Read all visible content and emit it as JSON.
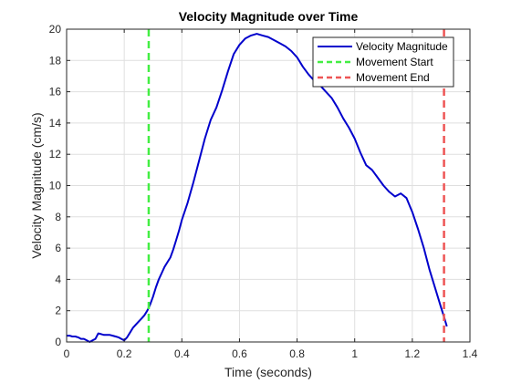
{
  "chart_data": {
    "type": "line",
    "title": "Velocity Magnitude over Time",
    "xlabel": "Time (seconds)",
    "ylabel": "Velocity Magnitude (cm/s)",
    "xlim": [
      0,
      1.4
    ],
    "ylim": [
      0,
      20
    ],
    "xticks": [
      0,
      0.2,
      0.4,
      0.6,
      0.8,
      1,
      1.2,
      1.4
    ],
    "xtick_labels": [
      "0",
      "0.2",
      "0.4",
      "0.6",
      "0.8",
      "1",
      "1.2",
      "1.4"
    ],
    "yticks": [
      0,
      2,
      4,
      6,
      8,
      10,
      12,
      14,
      16,
      18,
      20
    ],
    "ytick_labels": [
      "0",
      "2",
      "4",
      "6",
      "8",
      "10",
      "12",
      "14",
      "16",
      "18",
      "20"
    ],
    "grid": true,
    "legend_position": "top-right",
    "series": [
      {
        "name": "Velocity Magnitude",
        "color": "#0000CC",
        "x": [
          0,
          0.01,
          0.02,
          0.03,
          0.04,
          0.05,
          0.06,
          0.07,
          0.08,
          0.09,
          0.1,
          0.11,
          0.12,
          0.13,
          0.14,
          0.15,
          0.16,
          0.17,
          0.18,
          0.19,
          0.2,
          0.21,
          0.22,
          0.23,
          0.24,
          0.25,
          0.26,
          0.27,
          0.28,
          0.29,
          0.3,
          0.31,
          0.32,
          0.33,
          0.34,
          0.35,
          0.36,
          0.37,
          0.38,
          0.39,
          0.4,
          0.42,
          0.44,
          0.46,
          0.48,
          0.5,
          0.52,
          0.54,
          0.56,
          0.58,
          0.6,
          0.62,
          0.64,
          0.66,
          0.68,
          0.7,
          0.72,
          0.74,
          0.76,
          0.78,
          0.8,
          0.82,
          0.84,
          0.86,
          0.88,
          0.9,
          0.92,
          0.94,
          0.96,
          0.98,
          1.0,
          1.02,
          1.04,
          1.06,
          1.08,
          1.1,
          1.12,
          1.14,
          1.16,
          1.18,
          1.2,
          1.22,
          1.24,
          1.26,
          1.28,
          1.3,
          1.31,
          1.32
        ],
        "values": [
          0.4,
          0.4,
          0.35,
          0.35,
          0.3,
          0.2,
          0.2,
          0.1,
          0.0,
          0.1,
          0.2,
          0.55,
          0.5,
          0.45,
          0.45,
          0.45,
          0.4,
          0.35,
          0.3,
          0.2,
          0.1,
          0.3,
          0.6,
          0.9,
          1.1,
          1.3,
          1.5,
          1.7,
          2.0,
          2.4,
          2.9,
          3.5,
          4.0,
          4.4,
          4.8,
          5.1,
          5.4,
          5.9,
          6.5,
          7.1,
          7.8,
          8.9,
          10.2,
          11.6,
          13.0,
          14.2,
          15.0,
          16.1,
          17.3,
          18.4,
          19.0,
          19.4,
          19.6,
          19.7,
          19.6,
          19.5,
          19.3,
          19.1,
          18.9,
          18.6,
          18.2,
          17.6,
          17.1,
          16.7,
          16.4,
          16.0,
          15.6,
          15.0,
          14.3,
          13.7,
          13.0,
          12.1,
          11.3,
          11.0,
          10.5,
          10.0,
          9.6,
          9.3,
          9.5,
          9.2,
          8.3,
          7.2,
          6.0,
          4.6,
          3.4,
          2.2,
          1.6,
          1.0
        ]
      }
    ],
    "vlines": [
      {
        "name": "Movement Start",
        "x": 0.285,
        "color": "#44EE44"
      },
      {
        "name": "Movement End",
        "x": 1.31,
        "color": "#EE5555"
      }
    ]
  }
}
